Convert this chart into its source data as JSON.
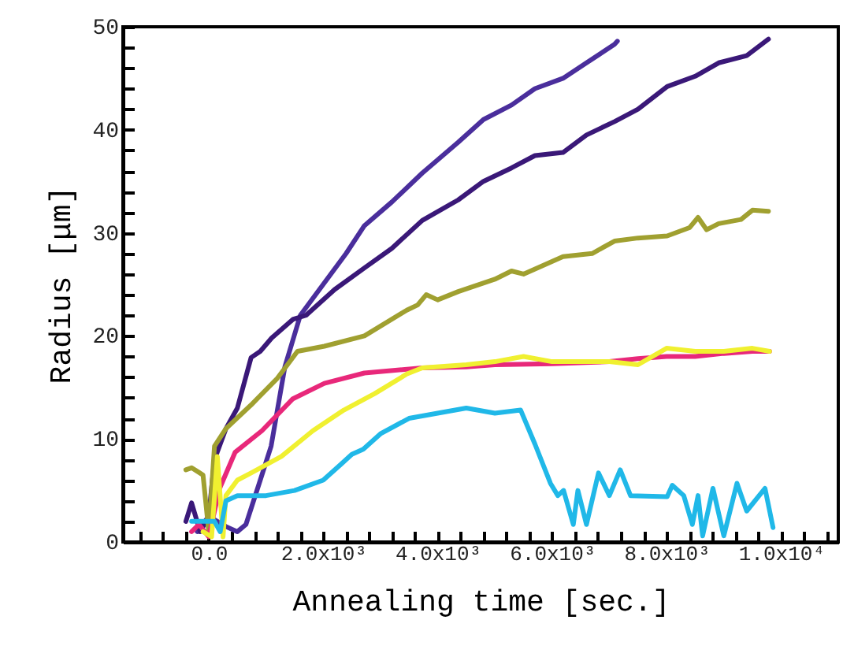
{
  "chart_data": {
    "type": "line",
    "xlabel": "Annealing time [sec.]",
    "ylabel": "Radius [μm]",
    "xlim": [
      -1500,
      11000
    ],
    "ylim": [
      0,
      50
    ],
    "xticks": [
      {
        "value": -1200,
        "label": null
      },
      {
        "value": -800,
        "label": null
      },
      {
        "value": -400,
        "label": null
      },
      {
        "value": 0,
        "label": "0.0"
      },
      {
        "value": 400,
        "label": null
      },
      {
        "value": 800,
        "label": null
      },
      {
        "value": 1200,
        "label": null
      },
      {
        "value": 1600,
        "label": null
      },
      {
        "value": 2000,
        "label": "2.0x10³"
      },
      {
        "value": 2400,
        "label": null
      },
      {
        "value": 2800,
        "label": null
      },
      {
        "value": 3200,
        "label": null
      },
      {
        "value": 3600,
        "label": null
      },
      {
        "value": 4000,
        "label": "4.0x10³"
      },
      {
        "value": 4400,
        "label": null
      },
      {
        "value": 4800,
        "label": null
      },
      {
        "value": 5200,
        "label": null
      },
      {
        "value": 5600,
        "label": null
      },
      {
        "value": 6000,
        "label": "6.0x10³"
      },
      {
        "value": 6400,
        "label": null
      },
      {
        "value": 6800,
        "label": null
      },
      {
        "value": 7200,
        "label": null
      },
      {
        "value": 7600,
        "label": null
      },
      {
        "value": 8000,
        "label": "8.0x10³"
      },
      {
        "value": 8400,
        "label": null
      },
      {
        "value": 8800,
        "label": null
      },
      {
        "value": 9200,
        "label": null
      },
      {
        "value": 9600,
        "label": null
      },
      {
        "value": 10000,
        "label": "1.0x10⁴"
      },
      {
        "value": 10400,
        "label": null
      },
      {
        "value": 10800,
        "label": null
      }
    ],
    "yticks": [
      0,
      {
        "value": 2,
        "label": null
      },
      {
        "value": 4,
        "label": null
      },
      {
        "value": 6,
        "label": null
      },
      {
        "value": 8,
        "label": null
      },
      10,
      {
        "value": 12,
        "label": null
      },
      {
        "value": 14,
        "label": null
      },
      {
        "value": 16,
        "label": null
      },
      {
        "value": 18,
        "label": null
      },
      20,
      {
        "value": 22,
        "label": null
      },
      {
        "value": 24,
        "label": null
      },
      {
        "value": 26,
        "label": null
      },
      {
        "value": 28,
        "label": null
      },
      30,
      {
        "value": 32,
        "label": null
      },
      {
        "value": 34,
        "label": null
      },
      {
        "value": 36,
        "label": null
      },
      {
        "value": 38,
        "label": null
      },
      40,
      {
        "value": 42,
        "label": null
      },
      {
        "value": 44,
        "label": null
      },
      {
        "value": 46,
        "label": null
      },
      {
        "value": 48,
        "label": null
      },
      50
    ],
    "grid": false,
    "marker": "none",
    "line_style": "solid",
    "series": [
      {
        "color": "#4a2e9c",
        "x": [
          -200,
          0,
          300,
          500,
          650,
          900,
          1090,
          1330,
          1600,
          2000,
          2400,
          2720,
          3200,
          3730,
          4360,
          4800,
          5290,
          5700,
          6190,
          6600,
          7090,
          7140
        ],
        "values": [
          1,
          2.5,
          1.5,
          1,
          1.7,
          6,
          9.3,
          17,
          22,
          25,
          28,
          30.7,
          33,
          35.8,
          38.8,
          41,
          42.4,
          44,
          45,
          46.5,
          48.3,
          48.6
        ]
      },
      {
        "color": "#3a1878",
        "x": [
          -400,
          -300,
          -150,
          0,
          100,
          300,
          500,
          740,
          900,
          1100,
          1470,
          1700,
          2200,
          2720,
          3200,
          3730,
          4360,
          4800,
          5290,
          5700,
          6190,
          6600,
          7090,
          7500,
          8010,
          8500,
          8910,
          9400,
          9780
        ],
        "values": [
          2,
          3.8,
          1,
          2.5,
          8,
          11,
          13,
          17.9,
          18.5,
          19.8,
          21.6,
          22,
          24.5,
          26.6,
          28.5,
          31.2,
          33.2,
          35,
          36.3,
          37.5,
          37.8,
          39.5,
          40.8,
          42,
          44.2,
          45.2,
          46.5,
          47.2,
          48.8
        ]
      },
      {
        "color": "#a0a030",
        "x": [
          -400,
          -300,
          -100,
          0,
          100,
          300,
          740,
          1200,
          1550,
          2020,
          2720,
          3460,
          3650,
          3800,
          4000,
          4360,
          5000,
          5290,
          5500,
          6190,
          6700,
          7090,
          7500,
          8010,
          8400,
          8550,
          8700,
          8910,
          9300,
          9500,
          9780
        ],
        "values": [
          7,
          7.2,
          6.5,
          1,
          9.3,
          11,
          13.3,
          15.9,
          18.5,
          19,
          20,
          22.5,
          23,
          24,
          23.5,
          24.3,
          25.5,
          26.3,
          26,
          27.7,
          28,
          29.2,
          29.5,
          29.7,
          30.5,
          31.5,
          30.3,
          30.9,
          31.3,
          32.2,
          32.1
        ]
      },
      {
        "color": "#e8287a",
        "x": [
          -300,
          -170,
          0,
          190,
          460,
          930,
          1470,
          2020,
          2720,
          3730,
          4500,
          5000,
          6000,
          7000,
          7500,
          8000,
          8500,
          9000,
          9500,
          9800
        ],
        "values": [
          1,
          1.7,
          0.5,
          5.2,
          8.7,
          10.8,
          13.9,
          15.4,
          16.4,
          16.9,
          17,
          17.2,
          17.3,
          17.5,
          17.8,
          18,
          18,
          18.3,
          18.5,
          18.5
        ]
      },
      {
        "color": "#f0f030",
        "x": [
          -100,
          50,
          150,
          250,
          300,
          500,
          740,
          1270,
          1820,
          2360,
          2900,
          3460,
          3730,
          4500,
          5000,
          5500,
          6000,
          7000,
          7500,
          8000,
          8500,
          9000,
          9500,
          9800
        ],
        "values": [
          1,
          0.5,
          8.3,
          0.5,
          4.5,
          6,
          6.7,
          8.3,
          10.8,
          12.8,
          14.4,
          16.3,
          16.9,
          17.2,
          17.5,
          18,
          17.5,
          17.5,
          17.2,
          18.8,
          18.5,
          18.5,
          18.8,
          18.5
        ]
      },
      {
        "color": "#20b8e8",
        "x": [
          -300,
          -100,
          100,
          200,
          300,
          500,
          1000,
          1500,
          2000,
          2300,
          2500,
          2700,
          3000,
          3500,
          4000,
          4500,
          5000,
          5450,
          5700,
          5970,
          6100,
          6200,
          6370,
          6450,
          6600,
          6810,
          7000,
          7190,
          7370,
          8010,
          8100,
          8300,
          8450,
          8550,
          8630,
          8810,
          9000,
          9230,
          9400,
          9720,
          9860
        ],
        "values": [
          2,
          2,
          2,
          1,
          4,
          4.5,
          4.5,
          5,
          6,
          7.5,
          8.5,
          9,
          10.5,
          12,
          12.5,
          13,
          12.5,
          12.8,
          9.5,
          5.7,
          4.5,
          5,
          1.7,
          5,
          1.7,
          6.7,
          4.5,
          7,
          4.5,
          4.4,
          5.5,
          4.5,
          1.7,
          4.5,
          0.6,
          5.2,
          0.6,
          5.7,
          3,
          5.2,
          1.4
        ]
      }
    ]
  }
}
